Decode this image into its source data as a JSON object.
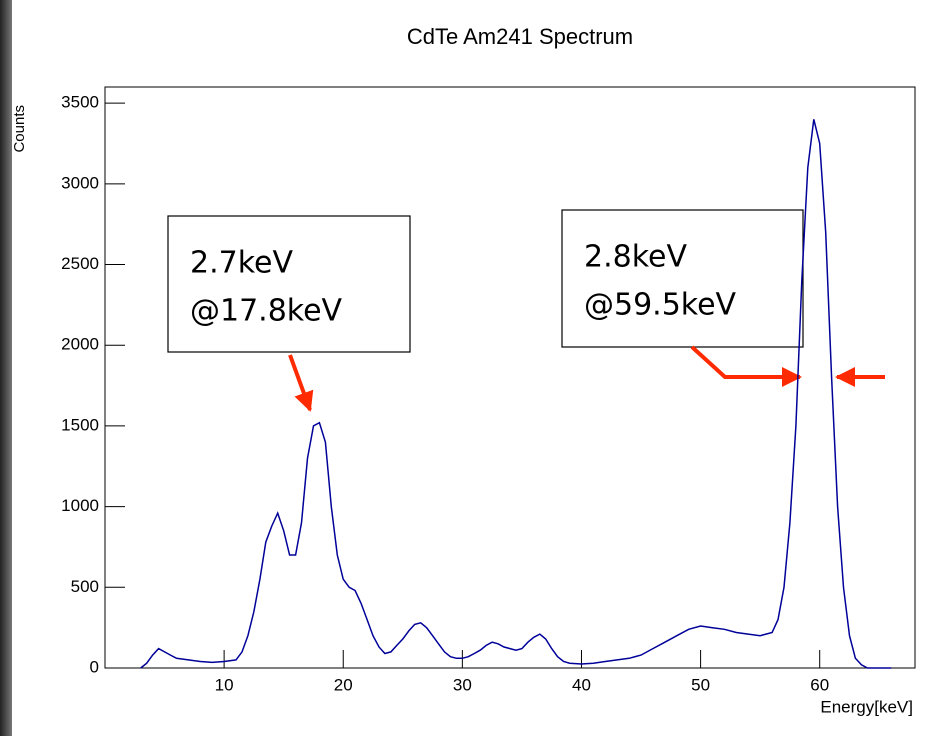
{
  "chart_data": {
    "type": "line",
    "title": "CdTe Am241 Spectrum",
    "x_label": "Energy[keV]",
    "y_label": "Counts",
    "x": [
      3,
      3.5,
      4,
      4.5,
      5,
      5.5,
      6,
      7,
      8,
      9,
      10,
      11,
      11.5,
      12,
      12.5,
      13,
      13.5,
      14,
      14.5,
      15,
      15.5,
      16,
      16.5,
      17,
      17.5,
      18,
      18.5,
      19,
      19.5,
      20,
      20.5,
      21,
      21.5,
      22,
      22.5,
      23,
      23.5,
      24,
      24.5,
      25,
      25.5,
      26,
      26.5,
      27,
      27.5,
      28,
      28.5,
      29,
      29.5,
      30,
      30.5,
      31,
      31.5,
      32,
      32.5,
      33,
      33.5,
      34,
      34.5,
      35,
      35.5,
      36,
      36.5,
      37,
      37.5,
      38,
      38.5,
      39,
      40,
      41,
      42,
      43,
      44,
      45,
      46,
      47,
      48,
      49,
      50,
      51,
      52,
      53,
      54,
      55,
      56,
      56.5,
      57,
      57.5,
      58,
      58.5,
      59,
      59.5,
      60,
      60.5,
      61,
      61.5,
      62,
      62.5,
      63,
      63.5,
      64,
      66
    ],
    "series": [
      {
        "name": "Counts",
        "color": "#000099",
        "values": [
          0,
          30,
          80,
          120,
          100,
          80,
          60,
          50,
          40,
          35,
          40,
          50,
          100,
          200,
          350,
          550,
          780,
          880,
          960,
          850,
          700,
          700,
          900,
          1300,
          1500,
          1520,
          1400,
          1000,
          700,
          550,
          500,
          480,
          400,
          300,
          200,
          130,
          90,
          100,
          140,
          180,
          230,
          270,
          280,
          250,
          200,
          150,
          100,
          70,
          60,
          60,
          70,
          90,
          110,
          140,
          160,
          150,
          130,
          120,
          110,
          120,
          160,
          190,
          210,
          180,
          120,
          70,
          40,
          30,
          25,
          30,
          40,
          50,
          60,
          80,
          120,
          160,
          200,
          240,
          260,
          250,
          240,
          220,
          210,
          200,
          220,
          300,
          500,
          900,
          1500,
          2400,
          3100,
          3400,
          3250,
          2700,
          1800,
          1000,
          500,
          200,
          60,
          20,
          0,
          0
        ]
      }
    ],
    "xlim": [
      0,
      68
    ],
    "ylim": [
      0,
      3600
    ],
    "xticks": [
      10,
      20,
      30,
      40,
      50,
      60
    ],
    "yticks": [
      0,
      500,
      1000,
      1500,
      2000,
      2500,
      3000,
      3500
    ],
    "annotations": [
      {
        "lines": [
          "2.7keV",
          "@17.8keV"
        ]
      },
      {
        "lines": [
          "2.8keV",
          "@59.5keV"
        ]
      }
    ]
  }
}
